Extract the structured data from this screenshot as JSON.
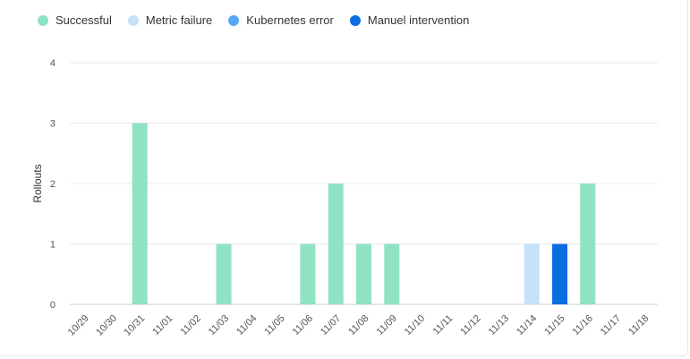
{
  "chart_data": {
    "type": "bar",
    "title": "",
    "xlabel": "",
    "ylabel": "Rollouts",
    "ylim": [
      0,
      4
    ],
    "yticks": [
      "0",
      "1",
      "2",
      "3",
      "4"
    ],
    "grid": true,
    "legend_position": "top-left",
    "categories": [
      "10/29",
      "10/30",
      "10/31",
      "11/01",
      "11/02",
      "11/03",
      "11/04",
      "11/05",
      "11/06",
      "11/07",
      "11/08",
      "11/09",
      "11/10",
      "11/11",
      "11/12",
      "11/13",
      "11/14",
      "11/15",
      "11/16",
      "11/17",
      "11/18"
    ],
    "series": [
      {
        "name": "Successful",
        "color": "#8fe3c3",
        "values": [
          0,
          0,
          3,
          0,
          0,
          1,
          0,
          0,
          1,
          2,
          1,
          1,
          0,
          0,
          0,
          0,
          0,
          0,
          2,
          0,
          0
        ]
      },
      {
        "name": "Metric failure",
        "color": "#c6e2fb",
        "values": [
          0,
          0,
          0,
          0,
          0,
          0,
          0,
          0,
          0,
          0,
          0,
          0,
          0,
          0,
          0,
          0,
          1,
          0,
          0,
          0,
          0
        ]
      },
      {
        "name": "Kubernetes error",
        "color": "#55a8f5",
        "values": [
          0,
          0,
          0,
          0,
          0,
          0,
          0,
          0,
          0,
          0,
          0,
          0,
          0,
          0,
          0,
          0,
          0,
          0,
          0,
          0,
          0
        ]
      },
      {
        "name": "Manuel intervention",
        "color": "#0a6ee0",
        "values": [
          0,
          0,
          0,
          0,
          0,
          0,
          0,
          0,
          0,
          0,
          0,
          0,
          0,
          0,
          0,
          0,
          0,
          1,
          0,
          0,
          0
        ]
      }
    ]
  }
}
